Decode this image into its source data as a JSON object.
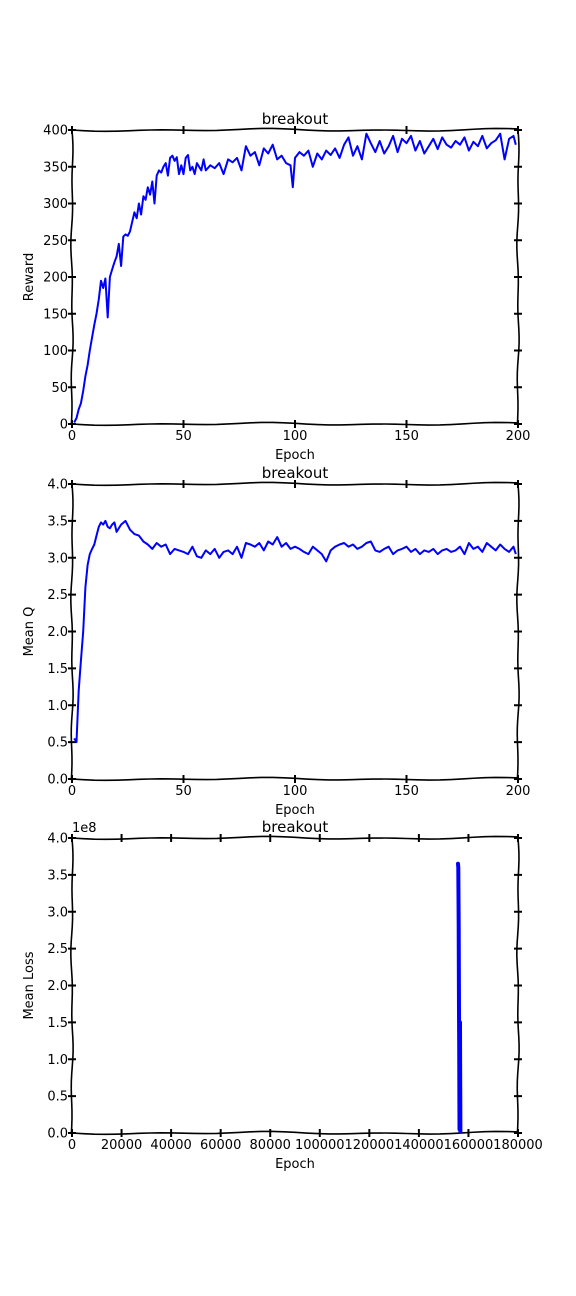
{
  "chart_data": [
    {
      "type": "line",
      "title": "breakout",
      "xlabel": "Epoch",
      "ylabel": "Reward",
      "xlim": [
        0,
        200
      ],
      "ylim": [
        0,
        400
      ],
      "xticks": [
        "0",
        "50",
        "100",
        "150",
        "200"
      ],
      "yticks": [
        "0",
        "50",
        "100",
        "150",
        "200",
        "250",
        "300",
        "350",
        "400"
      ],
      "series": [
        {
          "color": "#0000ff",
          "x": [
            1,
            2,
            3,
            4,
            5,
            6,
            7,
            8,
            9,
            10,
            11,
            12,
            13,
            14,
            15,
            16,
            17,
            18,
            19,
            20,
            21,
            22,
            23,
            24,
            25,
            26,
            27,
            28,
            29,
            30,
            31,
            32,
            33,
            34,
            35,
            36,
            37,
            38,
            39,
            40,
            41,
            42,
            43,
            44,
            45,
            46,
            47,
            48,
            49,
            50,
            51,
            52,
            53,
            54,
            55,
            56,
            57,
            58,
            59,
            60,
            62,
            64,
            66,
            68,
            70,
            72,
            74,
            76,
            78,
            80,
            82,
            84,
            86,
            88,
            90,
            92,
            94,
            96,
            98,
            99,
            100,
            102,
            104,
            106,
            108,
            110,
            112,
            114,
            116,
            118,
            120,
            122,
            124,
            126,
            128,
            130,
            132,
            134,
            136,
            138,
            140,
            142,
            144,
            146,
            148,
            150,
            152,
            154,
            156,
            158,
            160,
            162,
            164,
            166,
            168,
            170,
            172,
            174,
            176,
            178,
            180,
            182,
            184,
            186,
            188,
            190,
            192,
            194,
            196,
            198,
            199
          ],
          "y": [
            2,
            8,
            20,
            28,
            45,
            65,
            80,
            100,
            118,
            135,
            150,
            170,
            195,
            185,
            198,
            145,
            200,
            210,
            220,
            228,
            245,
            215,
            255,
            258,
            256,
            262,
            275,
            288,
            280,
            300,
            285,
            310,
            305,
            322,
            312,
            330,
            300,
            338,
            345,
            342,
            350,
            355,
            338,
            362,
            365,
            358,
            363,
            340,
            352,
            340,
            362,
            366,
            345,
            350,
            340,
            355,
            350,
            345,
            360,
            345,
            352,
            348,
            355,
            340,
            360,
            356,
            362,
            345,
            378,
            365,
            370,
            352,
            375,
            368,
            380,
            360,
            365,
            355,
            352,
            322,
            362,
            370,
            365,
            372,
            350,
            368,
            360,
            372,
            366,
            375,
            362,
            380,
            390,
            365,
            378,
            360,
            395,
            382,
            370,
            385,
            368,
            378,
            392,
            370,
            388,
            382,
            392,
            372,
            385,
            368,
            378,
            388,
            374,
            390,
            380,
            376,
            385,
            380,
            390,
            372,
            384,
            378,
            392,
            375,
            382,
            386,
            395,
            360,
            388,
            392,
            380
          ]
        }
      ]
    },
    {
      "type": "line",
      "title": "breakout",
      "xlabel": "Epoch",
      "ylabel": "Mean Q",
      "xlim": [
        0,
        200
      ],
      "ylim": [
        0,
        4.0
      ],
      "xticks": [
        "0",
        "50",
        "100",
        "150",
        "200"
      ],
      "yticks": [
        "0.0",
        "0.5",
        "1.0",
        "1.5",
        "2.0",
        "2.5",
        "3.0",
        "3.5",
        "4.0"
      ],
      "series": [
        {
          "color": "#0000ff",
          "x": [
            1,
            2,
            3,
            4,
            5,
            6,
            7,
            8,
            9,
            10,
            11,
            12,
            13,
            14,
            15,
            16,
            17,
            18,
            19,
            20,
            22,
            24,
            26,
            28,
            30,
            32,
            34,
            36,
            38,
            40,
            42,
            44,
            46,
            48,
            50,
            52,
            54,
            56,
            58,
            60,
            62,
            64,
            66,
            68,
            70,
            72,
            74,
            76,
            78,
            80,
            82,
            84,
            86,
            88,
            90,
            92,
            94,
            96,
            98,
            100,
            102,
            104,
            106,
            108,
            110,
            112,
            114,
            116,
            118,
            120,
            122,
            124,
            126,
            128,
            130,
            132,
            134,
            136,
            138,
            140,
            142,
            144,
            146,
            148,
            150,
            152,
            154,
            156,
            158,
            160,
            162,
            164,
            166,
            168,
            170,
            172,
            174,
            176,
            178,
            180,
            182,
            184,
            186,
            188,
            190,
            192,
            194,
            196,
            198,
            199
          ],
          "y": [
            0.55,
            0.5,
            1.2,
            1.6,
            2.0,
            2.6,
            2.9,
            3.05,
            3.12,
            3.18,
            3.3,
            3.42,
            3.48,
            3.45,
            3.5,
            3.42,
            3.4,
            3.45,
            3.48,
            3.35,
            3.45,
            3.5,
            3.38,
            3.32,
            3.3,
            3.22,
            3.18,
            3.12,
            3.2,
            3.15,
            3.18,
            3.05,
            3.12,
            3.1,
            3.08,
            3.05,
            3.15,
            3.02,
            3.0,
            3.1,
            3.05,
            3.12,
            3.0,
            3.08,
            3.1,
            3.05,
            3.15,
            3.0,
            3.2,
            3.18,
            3.15,
            3.2,
            3.1,
            3.22,
            3.18,
            3.28,
            3.15,
            3.2,
            3.12,
            3.15,
            3.12,
            3.08,
            3.05,
            3.15,
            3.1,
            3.05,
            2.95,
            3.1,
            3.15,
            3.18,
            3.2,
            3.15,
            3.18,
            3.12,
            3.15,
            3.2,
            3.22,
            3.1,
            3.08,
            3.12,
            3.15,
            3.05,
            3.1,
            3.12,
            3.15,
            3.08,
            3.12,
            3.05,
            3.1,
            3.08,
            3.12,
            3.05,
            3.1,
            3.12,
            3.08,
            3.1,
            3.15,
            3.05,
            3.2,
            3.12,
            3.15,
            3.08,
            3.2,
            3.15,
            3.1,
            3.18,
            3.12,
            3.08,
            3.15,
            3.05
          ]
        }
      ]
    },
    {
      "type": "line",
      "title": "breakout",
      "xlabel": "Epoch",
      "ylabel": "Mean Loss",
      "xlim": [
        0,
        180000
      ],
      "ylim": [
        0,
        400000000
      ],
      "offset_label": "1e8",
      "xticks": [
        "0",
        "20000",
        "40000",
        "60000",
        "80000",
        "100000",
        "120000",
        "140000",
        "160000",
        "180000"
      ],
      "yticks": [
        "0.0",
        "0.5",
        "1.0",
        "1.5",
        "2.0",
        "2.5",
        "3.0",
        "3.5",
        "4.0"
      ],
      "series": [
        {
          "color": "#0000ff",
          "x": [
            155800,
            155900,
            156000,
            156050,
            156100,
            156150,
            156200,
            156250,
            156300,
            156350,
            156400,
            156450,
            156500,
            156550,
            156600,
            156650,
            156700,
            156750
          ],
          "y": [
            365000000,
            360000000,
            320000000,
            280000000,
            240000000,
            200000000,
            160000000,
            120000000,
            80000000,
            40000000,
            5000000,
            30000000,
            70000000,
            110000000,
            150000000,
            100000000,
            40000000,
            2000000
          ]
        }
      ]
    }
  ]
}
